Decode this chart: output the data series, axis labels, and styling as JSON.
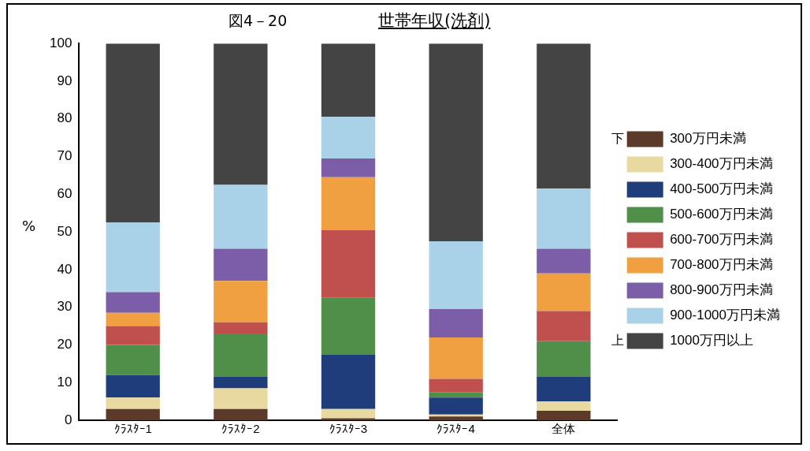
{
  "chart_data": {
    "type": "bar",
    "stacked": true,
    "title": "世帯年収(洗剤)",
    "ylabel": "%",
    "annotations": [
      "図4－20",
      "下",
      "上"
    ],
    "categories": [
      "ｸﾗｽﾀｰ1",
      "ｸﾗｽﾀｰ2",
      "ｸﾗｽﾀｰ3",
      "ｸﾗｽﾀｰ4",
      "全体"
    ],
    "series": [
      {
        "name": "300万円未満",
        "color": "#5b3a29",
        "values": [
          3,
          3,
          0.5,
          1,
          2.5
        ]
      },
      {
        "name": "300-400万円未満",
        "color": "#e8d9a0",
        "values": [
          3,
          5.5,
          2.5,
          0.5,
          2.5
        ]
      },
      {
        "name": "400-500万円未満",
        "color": "#1f3d7a",
        "values": [
          6,
          3,
          14.5,
          4.5,
          6.5
        ]
      },
      {
        "name": "500-600万円未満",
        "color": "#4f8f4a",
        "values": [
          8,
          11.5,
          15,
          1.5,
          9.5
        ]
      },
      {
        "name": "600-700万円未満",
        "color": "#c0504d",
        "values": [
          5,
          3,
          18,
          3.5,
          8
        ]
      },
      {
        "name": "700-800万円未満",
        "color": "#f0a040",
        "values": [
          3.5,
          11,
          14,
          11,
          10
        ]
      },
      {
        "name": "800-900万円未満",
        "color": "#7b5ea7",
        "values": [
          5.5,
          8.5,
          5,
          7.5,
          6.5
        ]
      },
      {
        "name": "900-1000万円未満",
        "color": "#a9d2e8",
        "values": [
          18.5,
          17,
          11,
          18,
          16
        ]
      },
      {
        "name": "1000万円以上",
        "color": "#444444",
        "values": [
          47.5,
          37.5,
          19.5,
          52.5,
          38.5
        ]
      }
    ],
    "ylim": [
      0,
      100
    ],
    "yticks": [
      0,
      10,
      20,
      30,
      40,
      50,
      60,
      70,
      80,
      90,
      100
    ],
    "grid": false,
    "legend": "right"
  }
}
